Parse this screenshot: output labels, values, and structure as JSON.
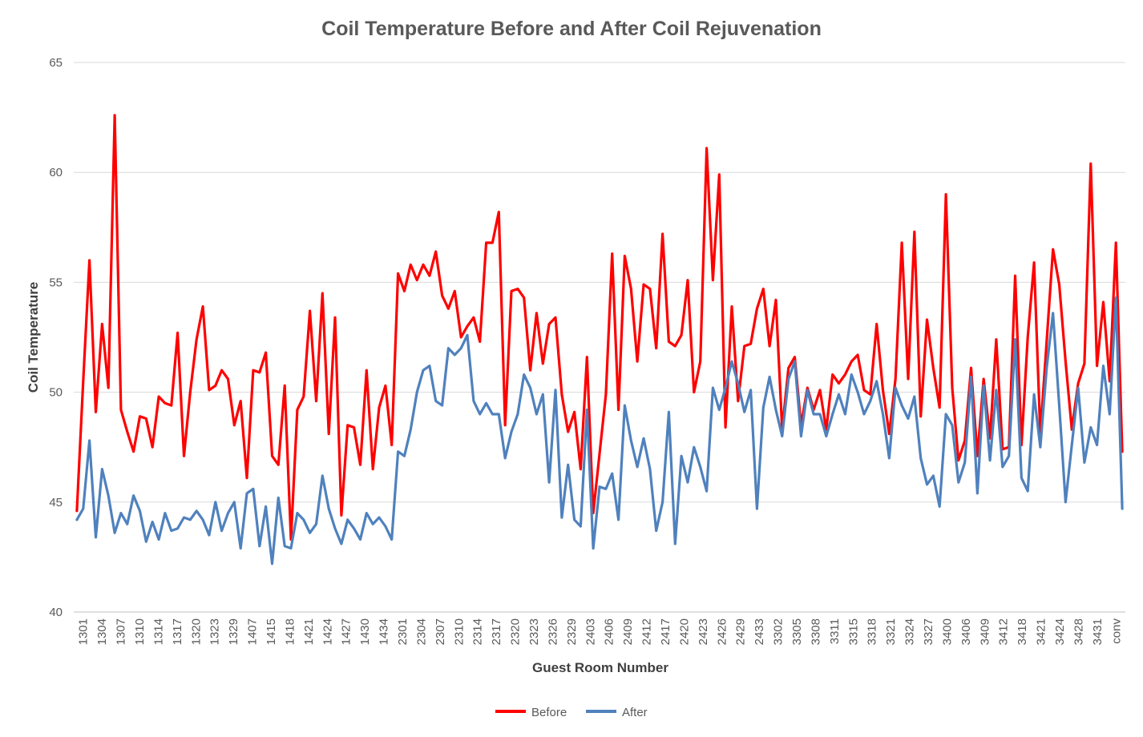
{
  "chart_data": {
    "type": "line",
    "title": "Coil Temperature Before and After Coil Rejuvenation",
    "xlabel": "Guest Room Number",
    "ylabel": "Coil Temperature",
    "ylim": [
      40,
      65
    ],
    "yticks": [
      40,
      45,
      50,
      55,
      60,
      65
    ],
    "grid": true,
    "legend_position": "bottom",
    "x_tick_labels": [
      "1301",
      "1304",
      "1307",
      "1310",
      "1314",
      "1317",
      "1320",
      "1323",
      "1329",
      "1407",
      "1415",
      "1418",
      "1421",
      "1424",
      "1427",
      "1430",
      "1434",
      "2301",
      "2304",
      "2307",
      "2310",
      "2314",
      "2317",
      "2320",
      "2323",
      "2326",
      "2329",
      "2403",
      "2406",
      "2409",
      "2412",
      "2417",
      "2420",
      "2423",
      "2426",
      "2429",
      "2433",
      "3302",
      "3305",
      "3308",
      "3311",
      "3315",
      "3318",
      "3321",
      "3324",
      "3327",
      "3400",
      "3406",
      "3409",
      "3412",
      "3418",
      "3421",
      "3424",
      "3428",
      "3431",
      "conv"
    ],
    "series": [
      {
        "name": "Before",
        "color": "#ff0000",
        "values": [
          44.6,
          50.5,
          56.0,
          49.1,
          53.1,
          50.2,
          62.6,
          49.2,
          48.2,
          47.3,
          48.9,
          48.8,
          47.5,
          49.8,
          49.5,
          49.4,
          52.7,
          47.1,
          50.0,
          52.4,
          53.9,
          50.1,
          50.3,
          51.0,
          50.6,
          48.5,
          49.6,
          46.1,
          51.0,
          50.9,
          51.8,
          47.1,
          46.7,
          50.3,
          43.3,
          49.2,
          49.8,
          53.7,
          49.6,
          54.5,
          48.1,
          53.4,
          44.4,
          48.5,
          48.4,
          46.7,
          51.0,
          46.5,
          49.3,
          50.3,
          47.6,
          55.4,
          54.6,
          55.8,
          55.1,
          55.8,
          55.3,
          56.4,
          54.4,
          53.8,
          54.6,
          52.5,
          53.0,
          53.4,
          52.3,
          56.8,
          56.8,
          58.2,
          48.5,
          54.6,
          54.7,
          54.3,
          51.0,
          53.6,
          51.3,
          53.1,
          53.4,
          49.9,
          48.2,
          49.1,
          46.5,
          51.6,
          44.5,
          47.2,
          49.9,
          56.3,
          49.2,
          56.2,
          54.7,
          51.4,
          54.9,
          54.7,
          52.0,
          57.2,
          52.3,
          52.1,
          52.6,
          55.1,
          50.0,
          51.4,
          61.1,
          55.1,
          59.9,
          48.4,
          53.9,
          49.6,
          52.1,
          52.2,
          53.8,
          54.7,
          52.1,
          54.2,
          48.3,
          51.1,
          51.6,
          48.5,
          50.2,
          49.2,
          50.1,
          48.3,
          50.8,
          50.4,
          50.8,
          51.4,
          51.7,
          50.1,
          49.9,
          53.1,
          50.1,
          48.1,
          50.6,
          56.8,
          50.6,
          57.3,
          48.9,
          53.3,
          51.1,
          49.3,
          59.0,
          50.2,
          46.9,
          47.8,
          51.1,
          47.1,
          50.6,
          47.9,
          52.4,
          47.4,
          47.5,
          55.3,
          47.6,
          52.5,
          55.9,
          48.1,
          52.3,
          56.5,
          54.9,
          51.4,
          48.3,
          50.4,
          51.3,
          60.4,
          51.2,
          54.1,
          50.5,
          56.8,
          47.3
        ]
      },
      {
        "name": "After",
        "color": "#4f81bd",
        "values": [
          44.2,
          44.7,
          47.8,
          43.4,
          46.5,
          45.3,
          43.6,
          44.5,
          44.0,
          45.3,
          44.6,
          43.2,
          44.1,
          43.3,
          44.5,
          43.7,
          43.8,
          44.3,
          44.2,
          44.6,
          44.2,
          43.5,
          45.0,
          43.7,
          44.5,
          45.0,
          42.9,
          45.4,
          45.6,
          43.0,
          44.8,
          42.2,
          45.2,
          43.0,
          42.9,
          44.5,
          44.2,
          43.6,
          44.0,
          46.2,
          44.7,
          43.8,
          43.1,
          44.2,
          43.8,
          43.3,
          44.5,
          44.0,
          44.3,
          43.9,
          43.3,
          47.3,
          47.1,
          48.3,
          50.0,
          51.0,
          51.2,
          49.6,
          49.4,
          52.0,
          51.7,
          52.0,
          52.6,
          49.6,
          49.0,
          49.5,
          49.0,
          49.0,
          47.0,
          48.2,
          49.0,
          50.8,
          50.2,
          49.0,
          49.9,
          45.9,
          50.1,
          44.3,
          46.7,
          44.2,
          43.9,
          49.2,
          42.9,
          45.7,
          45.6,
          46.3,
          44.2,
          49.4,
          47.8,
          46.6,
          47.9,
          46.5,
          43.7,
          45.0,
          49.1,
          43.1,
          47.1,
          45.9,
          47.5,
          46.6,
          45.5,
          50.2,
          49.2,
          50.2,
          51.4,
          50.4,
          49.1,
          50.1,
          44.7,
          49.3,
          50.7,
          49.2,
          48.0,
          50.6,
          51.4,
          48.0,
          50.1,
          49.0,
          49.0,
          48.0,
          49.0,
          49.9,
          49.0,
          50.8,
          50.0,
          49.0,
          49.6,
          50.5,
          49.0,
          47.0,
          50.2,
          49.4,
          48.8,
          49.8,
          47.0,
          45.8,
          46.2,
          44.8,
          49.0,
          48.5,
          45.9,
          46.8,
          50.7,
          45.4,
          50.3,
          46.9,
          50.1,
          46.6,
          47.1,
          52.4,
          46.1,
          45.5,
          49.9,
          47.5,
          51.1,
          53.6,
          49.4,
          45.0,
          47.6,
          50.2,
          46.8,
          48.4,
          47.6,
          51.2,
          49.0,
          54.3,
          44.7
        ]
      }
    ]
  }
}
